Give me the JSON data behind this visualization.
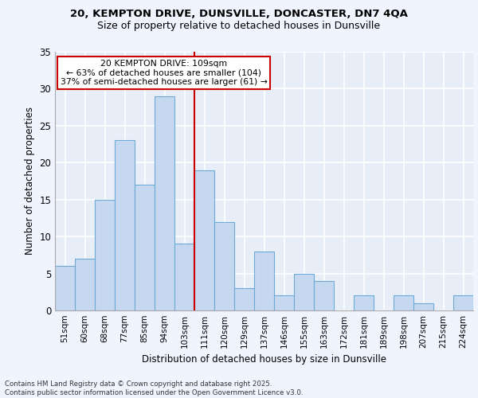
{
  "title1": "20, KEMPTON DRIVE, DUNSVILLE, DONCASTER, DN7 4QA",
  "title2": "Size of property relative to detached houses in Dunsville",
  "xlabel": "Distribution of detached houses by size in Dunsville",
  "ylabel": "Number of detached properties",
  "categories": [
    "51sqm",
    "60sqm",
    "68sqm",
    "77sqm",
    "85sqm",
    "94sqm",
    "103sqm",
    "111sqm",
    "120sqm",
    "129sqm",
    "137sqm",
    "146sqm",
    "155sqm",
    "163sqm",
    "172sqm",
    "181sqm",
    "189sqm",
    "198sqm",
    "207sqm",
    "215sqm",
    "224sqm"
  ],
  "values": [
    6,
    7,
    15,
    23,
    17,
    29,
    9,
    19,
    12,
    3,
    8,
    2,
    5,
    4,
    0,
    2,
    0,
    2,
    1,
    0,
    2
  ],
  "bar_color": "#c5d8f0",
  "bar_edge_color": "#6aaad4",
  "vline_x": 6.5,
  "vline_color": "#cc0000",
  "annotation_title": "20 KEMPTON DRIVE: 109sqm",
  "annotation_line2": "← 63% of detached houses are smaller (104)",
  "annotation_line3": "37% of semi-detached houses are larger (61) →",
  "annotation_box_color": "#cc0000",
  "ylim": [
    0,
    35
  ],
  "yticks": [
    0,
    5,
    10,
    15,
    20,
    25,
    30,
    35
  ],
  "background_color": "#e8eef8",
  "grid_color": "#ffffff",
  "footer1": "Contains HM Land Registry data © Crown copyright and database right 2025.",
  "footer2": "Contains public sector information licensed under the Open Government Licence v3.0."
}
